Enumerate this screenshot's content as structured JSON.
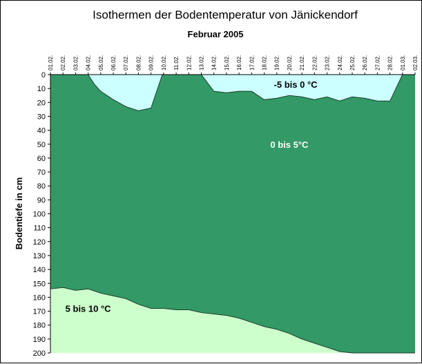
{
  "chart_data": {
    "type": "area",
    "title": "Isothermen der Bodentemperatur von Jänickendorf",
    "subtitle": "Februar 2005",
    "ylabel": "Bodentiefe in cm",
    "xlabel": "",
    "ylim": [
      0,
      200
    ],
    "y_inverted": true,
    "y_ticks": [
      0,
      10,
      20,
      30,
      40,
      50,
      60,
      70,
      80,
      90,
      100,
      110,
      120,
      130,
      140,
      150,
      160,
      170,
      180,
      190,
      200
    ],
    "grid": false,
    "x": [
      "01.02.",
      "02.02.",
      "03.02.",
      "04.02.",
      "05.02.",
      "06.02.",
      "07.02.",
      "08.02.",
      "09.02.",
      "10.02.",
      "11.02.",
      "12.02.",
      "13.02.",
      "14.02.",
      "15.02.",
      "16.02.",
      "17.02.",
      "18.02.",
      "19.02.",
      "20.02.",
      "21.02.",
      "22.02.",
      "23.02.",
      "24.02.",
      "25.02.",
      "26.02.",
      "27.02.",
      "28.02.",
      "01.03.",
      "02.03."
    ],
    "regions": [
      {
        "label": "-5 bis 0 °C",
        "color": "#ccffff"
      },
      {
        "label": "0 bis 5°C",
        "color": "#339966"
      },
      {
        "label": "5 bis 10 °C",
        "color": "#ccffcc"
      }
    ],
    "isotherm_0C": [
      [
        0,
        0
      ],
      [
        1,
        0
      ],
      [
        2,
        0
      ],
      [
        3,
        0
      ],
      [
        3.5,
        7
      ],
      [
        4,
        12
      ],
      [
        5,
        18
      ],
      [
        6,
        23
      ],
      [
        7,
        26
      ],
      [
        8,
        24
      ],
      [
        8.9,
        0
      ],
      [
        9,
        0
      ],
      [
        10,
        0
      ],
      [
        11,
        0
      ],
      [
        12,
        0
      ],
      [
        13,
        12
      ],
      [
        14,
        13
      ],
      [
        15,
        12
      ],
      [
        16,
        12
      ],
      [
        17,
        18
      ],
      [
        18,
        17
      ],
      [
        19,
        15
      ],
      [
        20,
        16
      ],
      [
        21,
        18
      ],
      [
        22,
        16
      ],
      [
        23,
        19
      ],
      [
        24,
        16
      ],
      [
        25,
        17
      ],
      [
        26,
        19
      ],
      [
        27,
        19
      ],
      [
        28,
        0
      ],
      [
        29,
        0
      ]
    ],
    "isotherm_5C": [
      [
        0,
        154
      ],
      [
        1,
        153
      ],
      [
        2,
        155
      ],
      [
        3,
        154
      ],
      [
        4,
        157
      ],
      [
        5,
        159
      ],
      [
        6,
        161
      ],
      [
        7,
        165
      ],
      [
        8,
        168
      ],
      [
        9,
        168
      ],
      [
        10,
        169
      ],
      [
        11,
        169
      ],
      [
        12,
        171
      ],
      [
        13,
        172
      ],
      [
        14,
        173
      ],
      [
        15,
        175
      ],
      [
        16,
        178
      ],
      [
        17,
        181
      ],
      [
        18,
        183
      ],
      [
        19,
        186
      ],
      [
        20,
        190
      ],
      [
        21,
        193
      ],
      [
        22,
        196
      ],
      [
        23,
        199
      ],
      [
        24,
        200
      ],
      [
        25,
        200
      ],
      [
        26,
        200
      ],
      [
        27,
        200
      ],
      [
        28,
        200
      ],
      [
        29,
        200
      ]
    ]
  }
}
